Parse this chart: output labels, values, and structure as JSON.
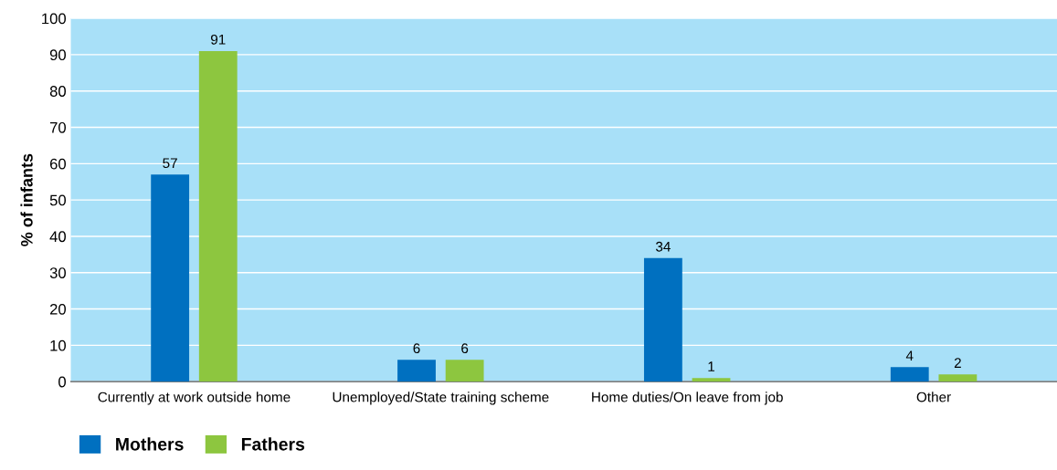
{
  "chart_data": {
    "type": "bar",
    "ylabel": "% of infants",
    "categories": [
      "Currently at work outside home",
      "Unemployed/State training scheme",
      "Home duties/On leave from job",
      "Other"
    ],
    "series": [
      {
        "name": "Mothers",
        "color": "#0070c0",
        "values": [
          57,
          6,
          34,
          4
        ]
      },
      {
        "name": "Fathers",
        "color": "#8dc63f",
        "values": [
          91,
          6,
          1,
          2
        ]
      }
    ],
    "ylim": [
      0,
      100
    ],
    "yticks": [
      0,
      10,
      20,
      30,
      40,
      50,
      60,
      70,
      80,
      90,
      100
    ],
    "grid": "y",
    "legend": "bottom left",
    "data_labels": true
  }
}
